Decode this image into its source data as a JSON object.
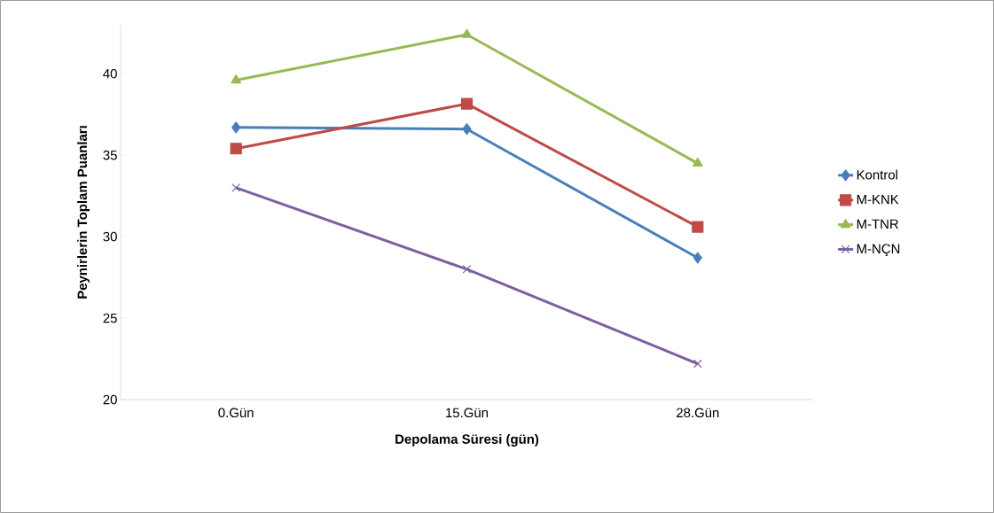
{
  "chart_data": {
    "type": "line",
    "xlabel": "Depolama Süresi (gün)",
    "ylabel": "Peynirlerin Toplam Puanları",
    "categories": [
      "0.Gün",
      "15.Gün",
      "28.Gün"
    ],
    "series": [
      {
        "name": "Kontrol",
        "color": "#4a7ebb",
        "marker": "diamond",
        "values": [
          36.7,
          36.6,
          28.7
        ]
      },
      {
        "name": "M-KNK",
        "color": "#be4b48",
        "marker": "square",
        "values": [
          35.4,
          38.15,
          30.6
        ]
      },
      {
        "name": "M-TNR",
        "color": "#98b954",
        "marker": "triangle",
        "values": [
          39.6,
          42.4,
          34.5
        ]
      },
      {
        "name": "M-NÇN",
        "color": "#7d60a0",
        "marker": "cross",
        "values": [
          33.0,
          28.0,
          22.2
        ]
      }
    ],
    "ylim": [
      20,
      43
    ],
    "yticks": [
      20,
      25,
      30,
      35,
      40
    ],
    "legend": "right",
    "line_style": "solid"
  }
}
